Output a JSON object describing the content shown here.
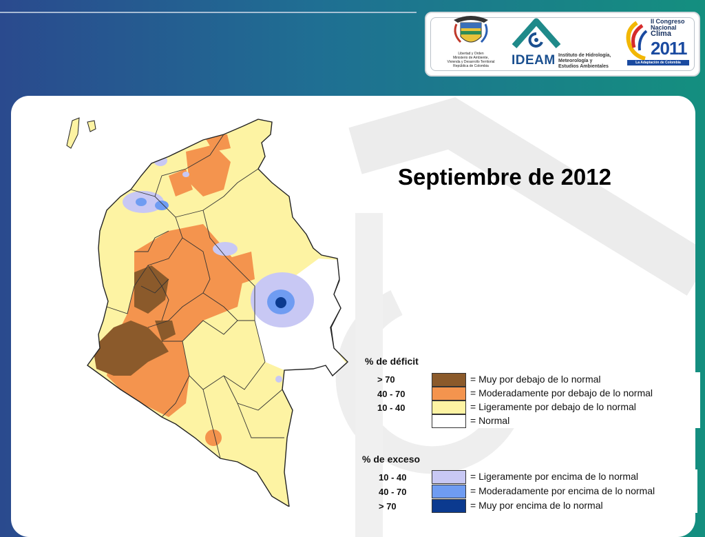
{
  "header": {
    "logos": {
      "ministerio": {
        "text": "Libertad y Orden\nMinisterio de Ambiente,\nVivienda y Desarrollo Territorial\nRepública de Colombia"
      },
      "ideam": {
        "name": "IDEAM",
        "subtitle": "Instituto de Hidrología,\nMeteorología y\nEstudios Ambientales"
      },
      "congreso": {
        "line1": "II Congreso",
        "line2": "Nacional",
        "line3": "Clima",
        "year": "2011",
        "tagline": "La Adaptación de Colombia"
      }
    }
  },
  "slide": {
    "title": "Septiembre de 2012"
  },
  "legend": {
    "deficit": {
      "heading": "% de déficit",
      "items": [
        {
          "range": "> 70",
          "color": "#8b5a2b",
          "label": "= Muy por debajo de lo normal"
        },
        {
          "range": "40 -  70",
          "color": "#f4944e",
          "label": "= Moderadamente por debajo de lo normal"
        },
        {
          "range": "10 -  40",
          "color": "#fdf3a3",
          "label": "= Ligeramente por debajo de lo normal"
        },
        {
          "range": "",
          "color": "#ffffff",
          "label": "= Normal"
        }
      ]
    },
    "exceso": {
      "heading": "% de exceso",
      "items": [
        {
          "range": "10 -  40",
          "color": "#c8c8f4",
          "label": "= Ligeramente por encima de lo normal"
        },
        {
          "range": "40 -  70",
          "color": "#6f9cf2",
          "label": "= Moderadamente por encima de lo normal"
        },
        {
          "range": "> 70",
          "color": "#0b3a8f",
          "label": "= Muy por encima de lo normal"
        }
      ]
    }
  }
}
